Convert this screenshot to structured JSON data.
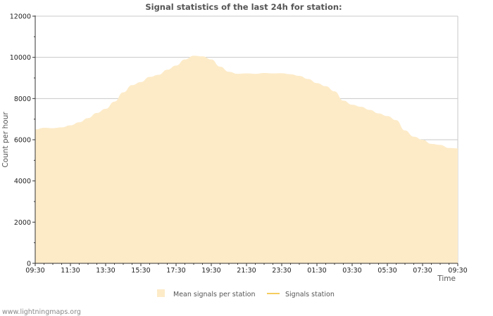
{
  "chart_data": {
    "type": "area",
    "title": "Signal statistics of the last 24h for station:",
    "xlabel": "Time",
    "ylabel": "Count per hour",
    "ylim": [
      0,
      12000
    ],
    "yticks": [
      0,
      2000,
      4000,
      6000,
      8000,
      10000,
      12000
    ],
    "xtick_labels": [
      "09:30",
      "11:30",
      "13:30",
      "15:30",
      "17:30",
      "19:30",
      "21:30",
      "23:30",
      "01:30",
      "03:30",
      "05:30",
      "07:30",
      "09:30"
    ],
    "grid": true,
    "legend_position": "bottom",
    "series": [
      {
        "name": "Mean signals per station",
        "kind": "area",
        "color": "#fdebc8",
        "x_hours": [
          0,
          0.5,
          1,
          1.5,
          2,
          2.5,
          3,
          3.5,
          4,
          4.5,
          5,
          5.5,
          6,
          6.5,
          7,
          7.5,
          8,
          8.5,
          9,
          9.5,
          10,
          10.5,
          11,
          11.5,
          12,
          12.5,
          13,
          13.5,
          14,
          14.5,
          15,
          15.5,
          16,
          16.5,
          17,
          17.5,
          18,
          18.5,
          19,
          19.5,
          20,
          20.5,
          21,
          21.5,
          22,
          22.5,
          23,
          23.5,
          24
        ],
        "values": [
          6500,
          6580,
          6560,
          6600,
          6700,
          6850,
          7050,
          7300,
          7500,
          7850,
          8300,
          8650,
          8800,
          9050,
          9150,
          9400,
          9600,
          9900,
          10080,
          10050,
          9900,
          9550,
          9300,
          9200,
          9220,
          9200,
          9240,
          9220,
          9230,
          9180,
          9100,
          8950,
          8750,
          8600,
          8350,
          7900,
          7700,
          7600,
          7450,
          7280,
          7150,
          6950,
          6450,
          6150,
          6000,
          5800,
          5750,
          5600,
          5580
        ]
      },
      {
        "name": "Signals station",
        "kind": "line",
        "color": "#f5cd5e",
        "values": []
      }
    ]
  },
  "footer": {
    "watermark": "www.lightningmaps.org"
  }
}
